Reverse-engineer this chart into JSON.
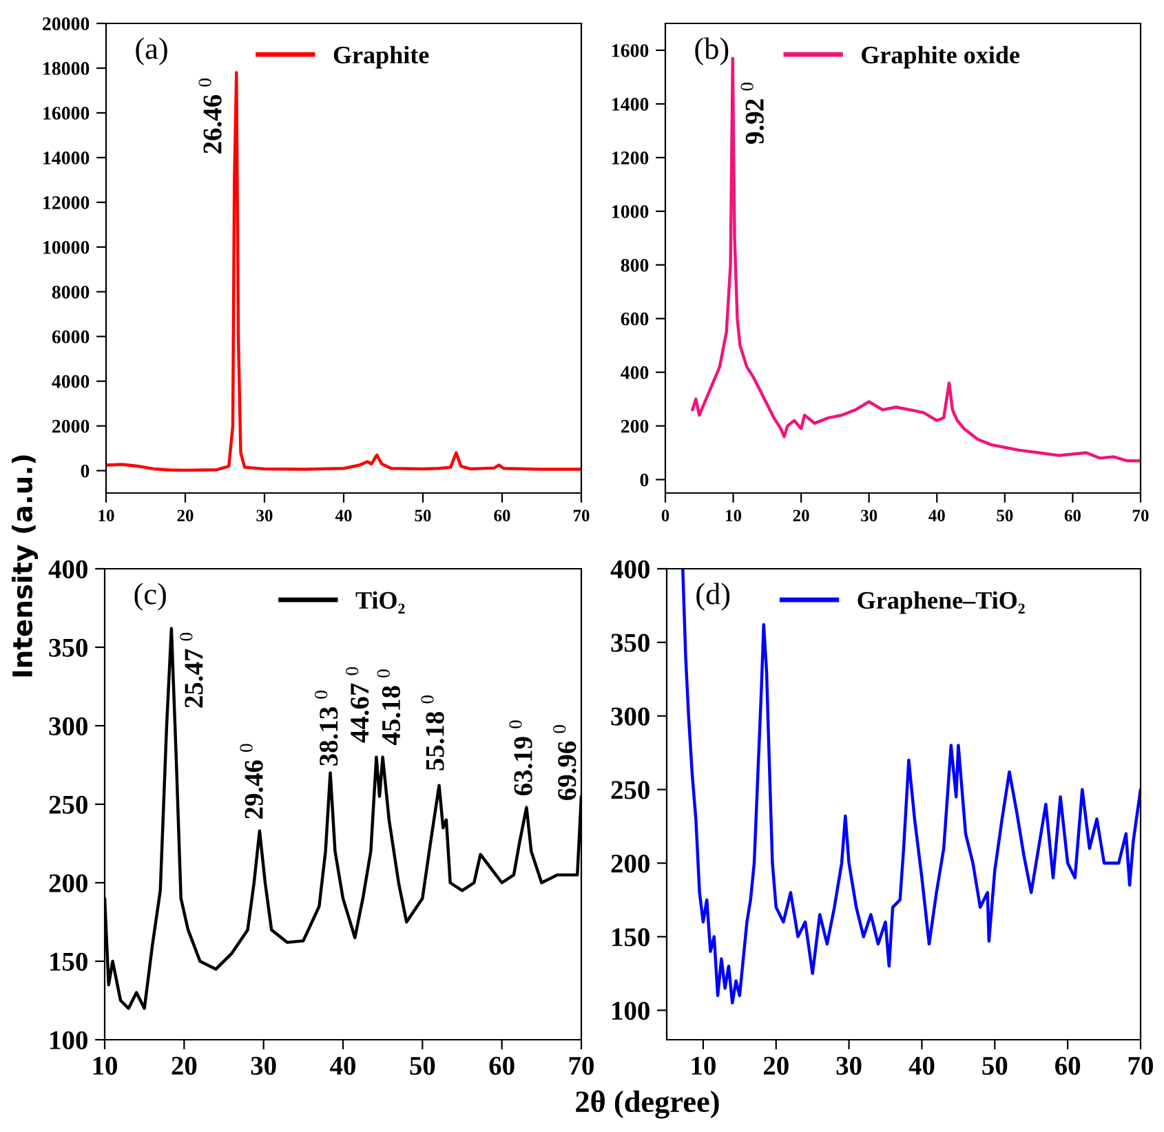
{
  "chart_data": [
    {
      "type": "line",
      "ylabel": "Intensity (a.u.)",
      "xlim": [
        10,
        70
      ],
      "xticks": [
        10,
        20,
        30,
        40,
        50,
        60,
        70
      ],
      "ylim": [
        -1000,
        20000
      ],
      "yticks": [
        0,
        2000,
        4000,
        6000,
        8000,
        10000,
        12000,
        14000,
        16000,
        18000,
        20000
      ],
      "legend": "top",
      "grid": false,
      "x": [
        10,
        12,
        14,
        16,
        18,
        20,
        24,
        25.5,
        26.0,
        26.2,
        26.46,
        26.7,
        27,
        27.5,
        30,
        35,
        40,
        42,
        43,
        43.5,
        44.2,
        44.8,
        46,
        50,
        52,
        53.5,
        54.2,
        54.8,
        56,
        59,
        59.6,
        60.2,
        65,
        70
      ],
      "series": [
        {
          "name": "Graphite",
          "color": "#ff0000",
          "values": [
            250,
            280,
            200,
            80,
            30,
            20,
            40,
            200,
            2000,
            13000,
            17800,
            6000,
            800,
            150,
            80,
            60,
            100,
            250,
            400,
            300,
            700,
            300,
            100,
            80,
            100,
            150,
            800,
            200,
            80,
            120,
            250,
            100,
            60,
            60
          ]
        }
      ],
      "annotations": [
        "(a)",
        "26.46 $^{0}$"
      ]
    },
    {
      "type": "line",
      "xlim": [
        0,
        70
      ],
      "xticks": [
        0,
        10,
        20,
        30,
        40,
        50,
        60,
        70
      ],
      "ylim": [
        -50,
        1700
      ],
      "yticks": [
        0,
        200,
        400,
        600,
        800,
        1000,
        1200,
        1400,
        1600
      ],
      "legend": "top",
      "grid": false,
      "x": [
        4,
        4.5,
        5,
        6,
        7,
        8,
        9,
        9.6,
        9.92,
        10.2,
        10.6,
        11,
        12,
        13,
        14,
        15,
        16,
        17,
        17.5,
        18,
        19,
        20,
        20.5,
        22,
        24,
        26,
        28,
        30,
        32,
        34,
        36,
        38,
        40,
        41,
        41.8,
        42.3,
        43,
        44,
        46,
        48,
        50,
        52,
        55,
        58,
        60,
        62,
        64,
        66,
        68,
        70
      ],
      "series": [
        {
          "name": "Graphite oxide",
          "color": "#f0147a",
          "values": [
            260,
            300,
            240,
            300,
            360,
            420,
            550,
            800,
            1570,
            900,
            600,
            500,
            420,
            380,
            330,
            280,
            230,
            190,
            160,
            200,
            220,
            190,
            240,
            210,
            230,
            240,
            260,
            290,
            260,
            270,
            260,
            250,
            220,
            230,
            360,
            260,
            220,
            190,
            150,
            130,
            120,
            110,
            100,
            90,
            95,
            100,
            80,
            85,
            70,
            70
          ]
        }
      ],
      "annotations": [
        "(b)",
        "9.92 $^{0}$"
      ]
    },
    {
      "type": "line",
      "xlim": [
        10,
        70
      ],
      "xticks": [
        10,
        20,
        30,
        40,
        50,
        60,
        70
      ],
      "ylim": [
        100,
        400
      ],
      "yticks": [
        100,
        150,
        200,
        250,
        300,
        350,
        400
      ],
      "legend": "top",
      "grid": false,
      "x": [
        10,
        10.5,
        11,
        12,
        13,
        14,
        15,
        16,
        17,
        17.8,
        18.4,
        19,
        19.6,
        20.5,
        22,
        24,
        26,
        28,
        28.8,
        29.5,
        30.2,
        31,
        33,
        35,
        37,
        37.8,
        38.4,
        39,
        40,
        41.5,
        42.5,
        43.5,
        44.2,
        44.6,
        45,
        45.8,
        47,
        48,
        50,
        51,
        52.1,
        52.6,
        53,
        53.5,
        55,
        56.5,
        57.3,
        58.5,
        60,
        61.5,
        62.2,
        63.1,
        63.7,
        65,
        67,
        69.5,
        70
      ],
      "series": [
        {
          "name": "TiO₂",
          "color": "#000000",
          "values": [
            190,
            135,
            150,
            125,
            120,
            130,
            120,
            160,
            195,
            300,
            362,
            280,
            190,
            170,
            150,
            145,
            155,
            170,
            200,
            233,
            200,
            170,
            162,
            163,
            185,
            220,
            270,
            220,
            190,
            165,
            190,
            220,
            280,
            255,
            280,
            240,
            200,
            175,
            190,
            225,
            262,
            235,
            240,
            200,
            195,
            200,
            218,
            210,
            200,
            205,
            225,
            248,
            220,
            200,
            205,
            205,
            255
          ]
        }
      ],
      "annotations": [
        "(c)",
        "25.47 $^{0}$",
        "29.46 $^{0}$",
        "38.13 $^{0}$",
        "44.67 $^{0}$",
        "45.18 $^{0}$",
        "55.18 $^{0}$",
        "63.19 $^{0}$",
        "69.96 $^{0}$"
      ]
    },
    {
      "type": "line",
      "xlabel": "2θ (degree)",
      "xlim": [
        5,
        70
      ],
      "xticks": [
        10,
        20,
        30,
        40,
        50,
        60,
        70
      ],
      "ylim": [
        80,
        400
      ],
      "yticks": [
        100,
        150,
        200,
        250,
        300,
        350,
        400
      ],
      "legend": "top",
      "grid": false,
      "x": [
        7.2,
        7.6,
        8,
        8.5,
        9,
        9.5,
        10,
        10.5,
        11,
        11.5,
        12,
        12.5,
        13,
        13.5,
        14,
        14.5,
        15,
        15.5,
        16,
        16.5,
        17,
        17.5,
        18,
        18.3,
        18.7,
        19,
        19.5,
        20,
        21,
        22,
        23,
        24,
        25,
        26,
        27,
        28,
        29,
        29.5,
        30,
        31,
        32,
        33,
        34,
        35,
        35.5,
        36,
        37,
        37.5,
        38.2,
        39,
        40,
        41,
        42,
        43,
        44,
        44.7,
        45,
        46,
        47,
        48,
        49,
        49.2,
        50,
        51,
        52,
        53,
        54,
        55,
        56,
        57,
        58,
        59,
        60,
        61,
        62,
        63,
        64,
        65,
        66,
        67,
        68,
        68.5,
        69,
        70
      ],
      "series": [
        {
          "name": "Graphene–TiO₂",
          "color": "#0000ff",
          "values": [
            400,
            340,
            300,
            260,
            230,
            180,
            160,
            175,
            140,
            150,
            110,
            135,
            115,
            130,
            105,
            120,
            110,
            135,
            160,
            175,
            200,
            260,
            320,
            362,
            330,
            280,
            200,
            170,
            160,
            180,
            150,
            160,
            125,
            165,
            145,
            170,
            200,
            232,
            200,
            170,
            150,
            165,
            145,
            160,
            130,
            170,
            175,
            210,
            270,
            230,
            190,
            145,
            180,
            210,
            280,
            245,
            280,
            220,
            200,
            170,
            180,
            147,
            195,
            230,
            262,
            235,
            205,
            180,
            210,
            240,
            190,
            245,
            200,
            190,
            250,
            210,
            230,
            200,
            200,
            200,
            220,
            185,
            215,
            250
          ]
        }
      ],
      "annotations": [
        "(d)"
      ]
    }
  ]
}
